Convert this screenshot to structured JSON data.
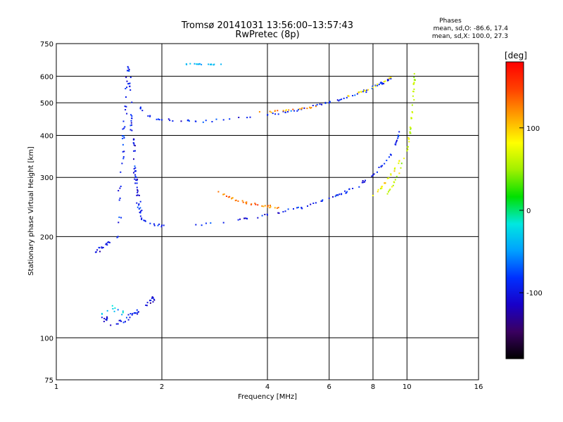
{
  "chart_data": {
    "type": "scatter",
    "title": "Tromsø 20141031 13:56:00–13:57:43",
    "subtitle": "RwPretec (8p)",
    "xlabel": "Frequency [MHz]",
    "ylabel": "Stationary phase Virtual Height [km]",
    "x_scale": "log",
    "y_scale": "log",
    "xlim": [
      1,
      16
    ],
    "ylim": [
      75,
      750
    ],
    "x_ticks": [
      1,
      2,
      4,
      6,
      8,
      10,
      16
    ],
    "y_ticks": [
      75,
      100,
      200,
      300,
      400,
      500,
      600,
      750
    ],
    "grid": true,
    "stats": {
      "heading": "Phases",
      "line1": "mean, sd,O: -86.6, 17.4",
      "line2": "mean, sd,X: 100.0, 27.3"
    },
    "colorbar": {
      "label": "[deg]",
      "range": [
        -180,
        180
      ],
      "ticks": [
        100,
        0,
        -100
      ],
      "tick_labels": [
        "100",
        "0",
        "-100"
      ],
      "colormap": [
        "#000000",
        "#3a0060",
        "#1800c8",
        "#0030ff",
        "#00a0ff",
        "#00e8e0",
        "#00e000",
        "#a0f000",
        "#ffff00",
        "#ffa000",
        "#ff4000",
        "#ff0000"
      ]
    },
    "series": [
      {
        "phase": -95,
        "points": [
          [
            1.5,
            200
          ],
          [
            1.52,
            260
          ],
          [
            1.54,
            330
          ],
          [
            1.56,
            420
          ],
          [
            1.58,
            520
          ],
          [
            1.6,
            640
          ],
          [
            1.62,
            560
          ],
          [
            1.64,
            450
          ],
          [
            1.66,
            380
          ],
          [
            1.68,
            320
          ],
          [
            1.7,
            280
          ],
          [
            1.72,
            250
          ],
          [
            1.74,
            230
          ]
        ],
        "band": 0.025,
        "density": 90
      },
      {
        "phase": -90,
        "points": [
          [
            1.74,
            485
          ],
          [
            1.85,
            455
          ],
          [
            2.0,
            445
          ],
          [
            2.5,
            440
          ],
          [
            3.0,
            445
          ],
          [
            3.5,
            452
          ],
          [
            4.0,
            460
          ],
          [
            4.5,
            468
          ],
          [
            5.0,
            478
          ],
          [
            5.5,
            490
          ],
          [
            6.0,
            500
          ],
          [
            6.5,
            512
          ],
          [
            7.0,
            525
          ],
          [
            7.5,
            540
          ],
          [
            8.0,
            555
          ],
          [
            8.5,
            572
          ],
          [
            9.0,
            590
          ]
        ],
        "band": 0.012,
        "density": 70
      },
      {
        "phase": -95,
        "points": [
          [
            1.75,
            225
          ],
          [
            1.9,
            218
          ],
          [
            2.0,
            216
          ],
          [
            2.5,
            217
          ],
          [
            3.0,
            220
          ],
          [
            3.5,
            226
          ],
          [
            4.0,
            232
          ],
          [
            4.5,
            238
          ],
          [
            5.0,
            244
          ],
          [
            5.5,
            252
          ],
          [
            6.0,
            260
          ],
          [
            6.5,
            268
          ],
          [
            7.0,
            278
          ],
          [
            7.5,
            290
          ],
          [
            8.0,
            305
          ],
          [
            8.5,
            325
          ],
          [
            9.0,
            350
          ],
          [
            9.3,
            380
          ],
          [
            9.5,
            410
          ]
        ],
        "band": 0.012,
        "density": 75
      },
      {
        "phase": 60,
        "points": [
          [
            8.8,
            268
          ],
          [
            9.2,
            290
          ],
          [
            9.6,
            320
          ],
          [
            10.0,
            360
          ],
          [
            10.2,
            410
          ],
          [
            10.35,
            470
          ],
          [
            10.45,
            540
          ],
          [
            10.5,
            610
          ]
        ],
        "band": 0.012,
        "density": 40
      },
      {
        "phase": 130,
        "points": [
          [
            2.9,
            272
          ],
          [
            3.1,
            262
          ],
          [
            3.3,
            255
          ],
          [
            3.6,
            250
          ],
          [
            4.0,
            246
          ],
          [
            4.3,
            244
          ]
        ],
        "band": 0.012,
        "density": 28
      },
      {
        "phase": 120,
        "points": [
          [
            3.8,
            470
          ],
          [
            4.2,
            472
          ],
          [
            4.6,
            476
          ],
          [
            5.0,
            480
          ],
          [
            5.5,
            488
          ]
        ],
        "band": 0.008,
        "density": 14
      },
      {
        "phase": 90,
        "points": [
          [
            6.8,
            525
          ],
          [
            7.4,
            540
          ],
          [
            8.0,
            555
          ],
          [
            8.6,
            578
          ],
          [
            9.0,
            595
          ]
        ],
        "band": 0.008,
        "density": 14
      },
      {
        "phase": 80,
        "points": [
          [
            8.0,
            265
          ],
          [
            8.5,
            282
          ],
          [
            9.0,
            305
          ],
          [
            9.5,
            335
          ]
        ],
        "band": 0.01,
        "density": 16
      },
      {
        "phase": -100,
        "points": [
          [
            1.35,
            115
          ],
          [
            1.5,
            110
          ],
          [
            1.65,
            118
          ],
          [
            1.8,
            125
          ],
          [
            1.9,
            130
          ]
        ],
        "band": 0.035,
        "density": 40
      },
      {
        "phase": -30,
        "points": [
          [
            1.35,
            118
          ],
          [
            1.45,
            122
          ],
          [
            1.55,
            120
          ]
        ],
        "band": 0.03,
        "density": 8
      },
      {
        "phase": -40,
        "points": [
          [
            2.35,
            652
          ],
          [
            2.55,
            651
          ],
          [
            2.75,
            650
          ],
          [
            2.95,
            651
          ]
        ],
        "band": 0.004,
        "density": 14
      },
      {
        "phase": -100,
        "points": [
          [
            1.3,
            180
          ],
          [
            1.35,
            185
          ],
          [
            1.42,
            192
          ]
        ],
        "band": 0.02,
        "density": 12
      }
    ]
  }
}
